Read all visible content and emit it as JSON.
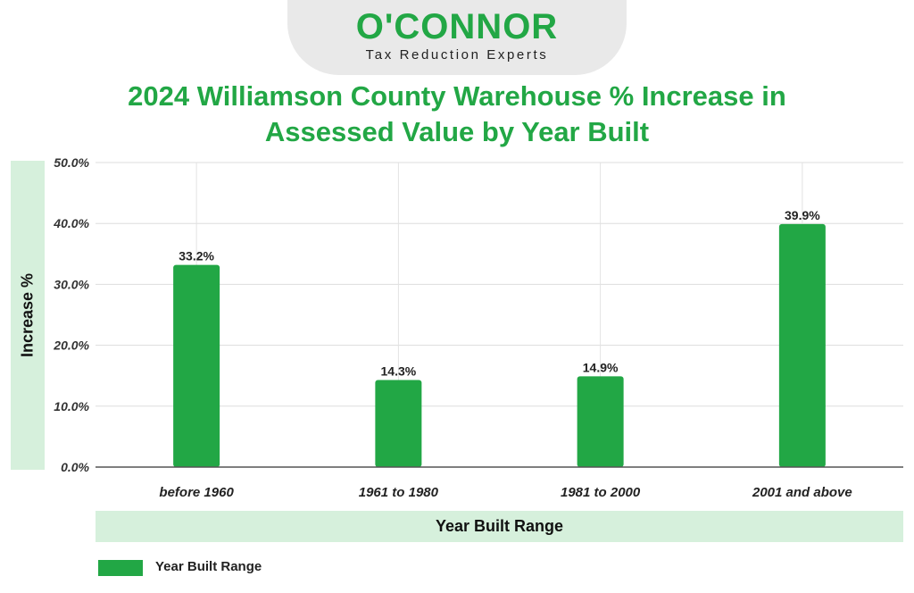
{
  "brand": {
    "name": "O'CONNOR",
    "tagline": "Tax Reduction Experts",
    "color": "#22a745"
  },
  "chart_data": {
    "type": "bar",
    "title": "2024 Williamson County Warehouse % Increase in Assessed Value by Year Built",
    "xlabel": "Year Built Range",
    "ylabel": "Increase %",
    "categories": [
      "before 1960",
      "1961 to 1980",
      "1981 to 2000",
      "2001 and above"
    ],
    "series": [
      {
        "name": "Year Built Range",
        "values": [
          33.2,
          14.3,
          14.9,
          39.9
        ],
        "labels": [
          "33.2%",
          "14.3%",
          "14.9%",
          "39.9%"
        ],
        "color": "#22a745"
      }
    ],
    "ylim": [
      0,
      50
    ],
    "yticks": [
      "0.0%",
      "10.0%",
      "20.0%",
      "30.0%",
      "40.0%",
      "50.0%"
    ],
    "ytick_values": [
      0,
      10,
      20,
      30,
      40,
      50
    ],
    "grid": true,
    "legend": "bottom-left"
  }
}
